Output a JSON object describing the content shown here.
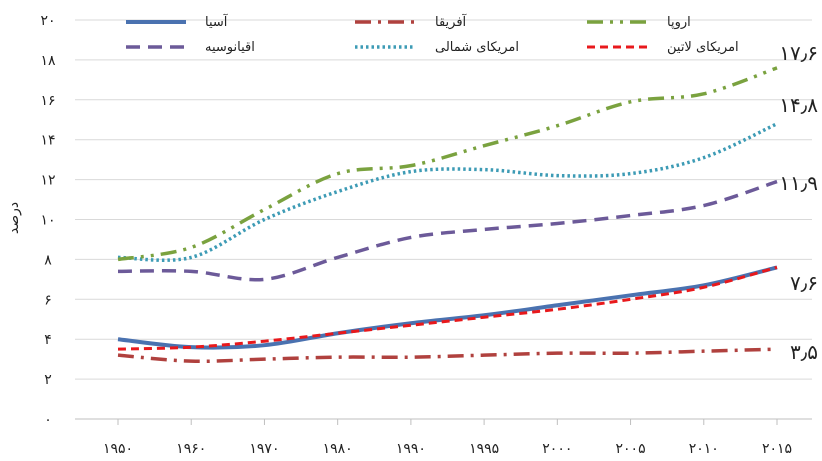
{
  "chart_data": {
    "type": "line",
    "ylabel": "درصد",
    "ylim": [
      0,
      20
    ],
    "y_ticks": [
      "۰",
      "۲",
      "۴",
      "۶",
      "۸",
      "۱۰",
      "۱۲",
      "۱۴",
      "۱۶",
      "۱۸",
      "۲۰"
    ],
    "x_tick_labels": [
      "۱۹۵۰",
      "۱۹۶۰",
      "۱۹۷۰",
      "۱۹۸۰",
      "۱۹۹۰",
      "۱۹۹۵",
      "۲۰۰۰",
      "۲۰۰۵",
      "۲۰۱۰",
      "۲۰۱۵"
    ],
    "grid": "horizontal",
    "legend_position": "top",
    "series": [
      {
        "name": "آسیا",
        "color": "#4a72b0",
        "dash": "solid",
        "values": [
          4.0,
          3.6,
          3.7,
          4.3,
          4.8,
          5.2,
          5.7,
          6.2,
          6.7,
          7.6
        ]
      },
      {
        "name": "آفریقا",
        "color": "#b0413e",
        "dash": "dashdot",
        "values": [
          3.2,
          2.9,
          3.0,
          3.1,
          3.1,
          3.2,
          3.3,
          3.3,
          3.4,
          3.5
        ]
      },
      {
        "name": "اروپا",
        "color": "#7aa23f",
        "dash": "dashdotdot",
        "values": [
          8.0,
          8.6,
          10.5,
          12.3,
          12.7,
          13.7,
          14.7,
          15.9,
          16.3,
          17.6
        ]
      },
      {
        "name": "اقیانوسیه",
        "color": "#6c5a99",
        "dash": "dash",
        "values": [
          7.4,
          7.4,
          7.0,
          8.1,
          9.1,
          9.5,
          9.8,
          10.2,
          10.7,
          11.9
        ]
      },
      {
        "name": "امریکای شمالی",
        "color": "#3d9bb5",
        "dash": "dot",
        "values": [
          8.1,
          8.1,
          10.0,
          11.4,
          12.4,
          12.5,
          12.2,
          12.3,
          13.1,
          14.8
        ]
      },
      {
        "name": "امریکای لاتین",
        "color": "#e8191c",
        "dash": "shortdash",
        "values": [
          3.5,
          3.6,
          3.9,
          4.3,
          4.7,
          5.1,
          5.5,
          6.0,
          6.6,
          7.6
        ]
      }
    ],
    "end_labels": [
      "۱۷٫۶",
      "۱۴٫۸",
      "۱۱٫۹",
      "۷٫۶",
      "۳٫۵"
    ]
  }
}
